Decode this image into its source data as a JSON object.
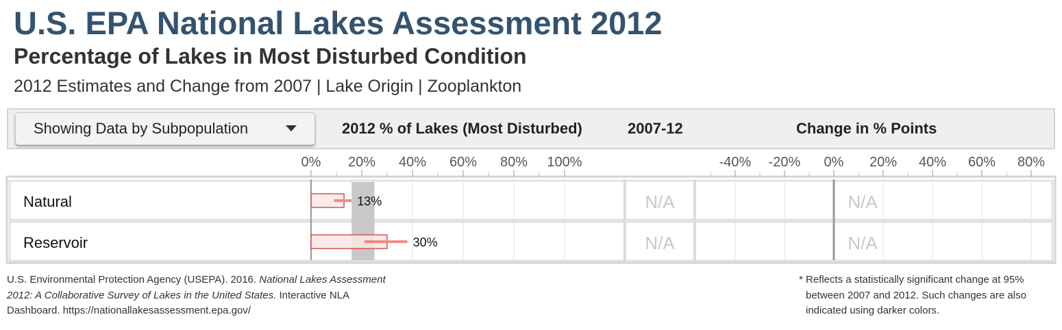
{
  "title": "U.S. EPA National Lakes Assessment 2012",
  "subtitle": "Percentage of Lakes in Most Disturbed Condition",
  "subtitle2": "2012 Estimates and Change from 2007 | Lake Origin | Zooplankton",
  "dropdown": {
    "label": "Showing Data by Subpopulation",
    "icon": "chevron-down-icon"
  },
  "columns": {
    "pct": "2012 % of Lakes (Most Disturbed)",
    "period": "2007-12",
    "change": "Change in % Points"
  },
  "colors": {
    "bar_fill": "#f9e6e6",
    "bar_stroke": "#d9534f",
    "ci": "#f08a8a",
    "reference_band": "#c8c8c8",
    "na_text": "#c8c8c8"
  },
  "chart_data": {
    "type": "bar",
    "categories": [
      "Natural",
      "Reservoir"
    ],
    "pct_axis": {
      "ticks": [
        "0%",
        "20%",
        "40%",
        "60%",
        "80%",
        "100%"
      ],
      "xlim": [
        0,
        100
      ]
    },
    "series": [
      {
        "values": [
          13,
          30
        ],
        "labels": [
          "13%",
          "30%"
        ],
        "ci_low": [
          9,
          21
        ],
        "ci_high": [
          16,
          38
        ]
      }
    ],
    "reference_band": [
      16,
      25
    ],
    "period_values": [
      "N/A",
      "N/A"
    ],
    "change_axis": {
      "ticks": [
        "-40%",
        "-20%",
        "0%",
        "20%",
        "40%",
        "60%",
        "80%"
      ],
      "xlim": [
        -60,
        90
      ]
    },
    "change_values": [
      "N/A",
      "N/A"
    ]
  },
  "footnote_left": {
    "pre": "U.S. Environmental Protection Agency (USEPA). 2016. ",
    "italic": "National Lakes Assessment 2012: A Collaborative Survey of Lakes in the United States.",
    "post": " Interactive NLA Dashboard. https://nationallakesassessment.epa.gov/"
  },
  "footnote_right": {
    "first": "* Reflects a statistically significant change at 95%",
    "rest": "between 2007 and 2012. Such changes are also indicated using darker colors."
  }
}
